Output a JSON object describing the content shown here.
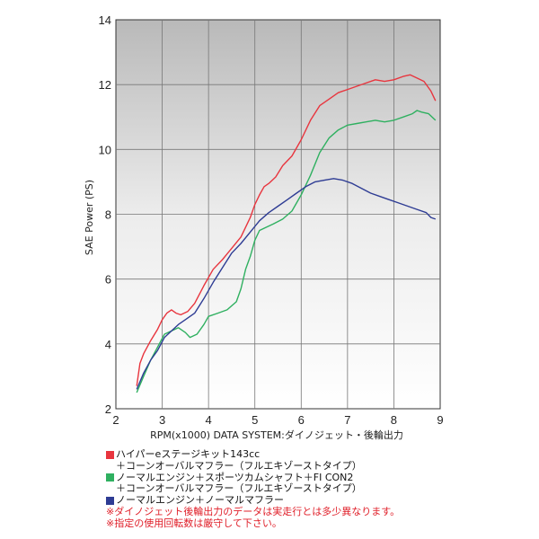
{
  "chart_data": {
    "type": "line",
    "title": "",
    "xlabel": "RPM(x1000) DATA SYSTEM:ダイノジェット・後輪出力",
    "ylabel": "SAE Power (PS)",
    "xlim": [
      2,
      9
    ],
    "ylim": [
      2,
      14
    ],
    "x_ticks": [
      "2",
      "3",
      "4",
      "5",
      "6",
      "7",
      "8",
      "9"
    ],
    "y_ticks": [
      "2",
      "4",
      "6",
      "8",
      "10",
      "12",
      "14"
    ],
    "grid": true,
    "series": [
      {
        "name": "ハイパーeステージキット143cc",
        "color": "#e8353e",
        "points": [
          [
            2.45,
            2.7
          ],
          [
            2.52,
            3.4
          ],
          [
            2.6,
            3.7
          ],
          [
            2.75,
            4.1
          ],
          [
            2.9,
            4.45
          ],
          [
            3.0,
            4.75
          ],
          [
            3.1,
            4.95
          ],
          [
            3.2,
            5.05
          ],
          [
            3.3,
            4.95
          ],
          [
            3.4,
            4.9
          ],
          [
            3.55,
            5.0
          ],
          [
            3.7,
            5.25
          ],
          [
            3.9,
            5.8
          ],
          [
            4.1,
            6.3
          ],
          [
            4.3,
            6.6
          ],
          [
            4.5,
            6.95
          ],
          [
            4.7,
            7.3
          ],
          [
            4.9,
            7.9
          ],
          [
            5.0,
            8.3
          ],
          [
            5.1,
            8.6
          ],
          [
            5.2,
            8.85
          ],
          [
            5.3,
            8.95
          ],
          [
            5.45,
            9.15
          ],
          [
            5.6,
            9.5
          ],
          [
            5.8,
            9.8
          ],
          [
            6.0,
            10.3
          ],
          [
            6.2,
            10.9
          ],
          [
            6.4,
            11.35
          ],
          [
            6.6,
            11.55
          ],
          [
            6.8,
            11.75
          ],
          [
            7.0,
            11.85
          ],
          [
            7.2,
            11.95
          ],
          [
            7.4,
            12.05
          ],
          [
            7.6,
            12.15
          ],
          [
            7.8,
            12.1
          ],
          [
            8.0,
            12.15
          ],
          [
            8.2,
            12.25
          ],
          [
            8.35,
            12.3
          ],
          [
            8.5,
            12.2
          ],
          [
            8.65,
            12.1
          ],
          [
            8.8,
            11.8
          ],
          [
            8.9,
            11.5
          ]
        ]
      },
      {
        "name": "ノーマルエンジン＋スポーツカムシャフト＋FI CON2",
        "color": "#2fb060",
        "points": [
          [
            2.45,
            2.5
          ],
          [
            2.6,
            3.0
          ],
          [
            2.75,
            3.5
          ],
          [
            2.9,
            3.9
          ],
          [
            3.05,
            4.3
          ],
          [
            3.2,
            4.4
          ],
          [
            3.35,
            4.5
          ],
          [
            3.5,
            4.35
          ],
          [
            3.6,
            4.2
          ],
          [
            3.75,
            4.3
          ],
          [
            3.9,
            4.6
          ],
          [
            4.0,
            4.85
          ],
          [
            4.2,
            4.95
          ],
          [
            4.4,
            5.05
          ],
          [
            4.6,
            5.3
          ],
          [
            4.7,
            5.7
          ],
          [
            4.8,
            6.3
          ],
          [
            4.9,
            6.7
          ],
          [
            5.0,
            7.2
          ],
          [
            5.1,
            7.5
          ],
          [
            5.25,
            7.6
          ],
          [
            5.4,
            7.7
          ],
          [
            5.6,
            7.85
          ],
          [
            5.8,
            8.1
          ],
          [
            6.0,
            8.6
          ],
          [
            6.2,
            9.2
          ],
          [
            6.4,
            9.9
          ],
          [
            6.6,
            10.35
          ],
          [
            6.8,
            10.6
          ],
          [
            7.0,
            10.75
          ],
          [
            7.2,
            10.8
          ],
          [
            7.4,
            10.85
          ],
          [
            7.6,
            10.9
          ],
          [
            7.8,
            10.85
          ],
          [
            8.0,
            10.9
          ],
          [
            8.2,
            11.0
          ],
          [
            8.4,
            11.1
          ],
          [
            8.5,
            11.2
          ],
          [
            8.6,
            11.15
          ],
          [
            8.75,
            11.1
          ],
          [
            8.9,
            10.9
          ]
        ]
      },
      {
        "name": "ノーマルエンジン＋ノーマルマフラー",
        "color": "#2e3c94",
        "points": [
          [
            2.45,
            2.6
          ],
          [
            2.6,
            3.1
          ],
          [
            2.75,
            3.5
          ],
          [
            2.9,
            3.8
          ],
          [
            3.05,
            4.2
          ],
          [
            3.2,
            4.4
          ],
          [
            3.35,
            4.6
          ],
          [
            3.5,
            4.75
          ],
          [
            3.7,
            4.95
          ],
          [
            3.9,
            5.4
          ],
          [
            4.1,
            5.9
          ],
          [
            4.3,
            6.35
          ],
          [
            4.5,
            6.8
          ],
          [
            4.7,
            7.1
          ],
          [
            4.9,
            7.45
          ],
          [
            5.1,
            7.8
          ],
          [
            5.3,
            8.05
          ],
          [
            5.5,
            8.25
          ],
          [
            5.7,
            8.45
          ],
          [
            5.9,
            8.65
          ],
          [
            6.1,
            8.85
          ],
          [
            6.3,
            9.0
          ],
          [
            6.5,
            9.05
          ],
          [
            6.7,
            9.1
          ],
          [
            6.9,
            9.05
          ],
          [
            7.1,
            8.95
          ],
          [
            7.3,
            8.8
          ],
          [
            7.5,
            8.65
          ],
          [
            7.7,
            8.55
          ],
          [
            7.9,
            8.45
          ],
          [
            8.1,
            8.35
          ],
          [
            8.3,
            8.25
          ],
          [
            8.5,
            8.15
          ],
          [
            8.7,
            8.05
          ],
          [
            8.8,
            7.9
          ],
          [
            8.9,
            7.85
          ]
        ]
      }
    ]
  },
  "legend": {
    "line1": "ハイパーeステージキット143cc",
    "line2": "＋コーンオーバルマフラー（フルエキゾーストタイプ）",
    "line3": "ノーマルエンジン＋スポーツカムシャフト＋FI CON2",
    "line4": "＋コーンオーバルマフラー（フルエキゾーストタイプ）",
    "line5": "ノーマルエンジン＋ノーマルマフラー",
    "note1": "※ダイノジェット後輪出力のデータは実走行とは多少異なります。",
    "note2": "※指定の使用回転数は厳守して下さい。"
  },
  "colors": {
    "red": "#e8353e",
    "green": "#2fb060",
    "blue": "#2e3c94",
    "note": "#e0202a"
  }
}
